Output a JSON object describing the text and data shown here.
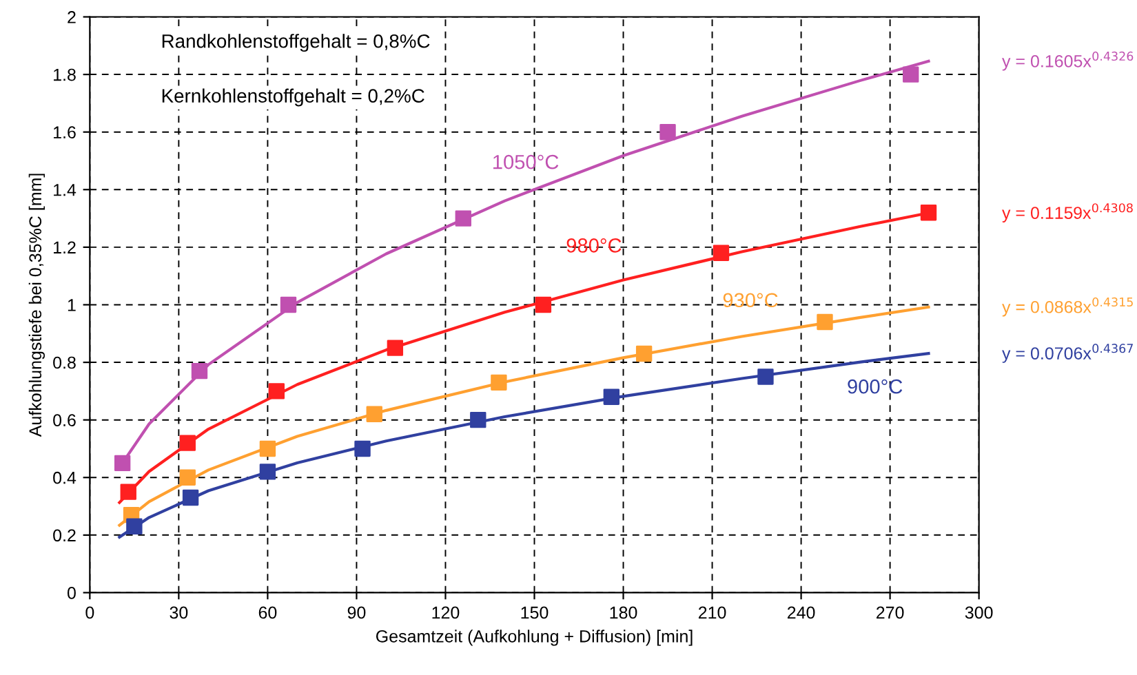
{
  "chart_data": {
    "type": "scatter",
    "xlabel": "Gesamtzeit (Aufkohlung + Diffusion) [min]",
    "ylabel": "Aufkohlungstiefe bei 0,35%C [mm]",
    "xlim": [
      0,
      300
    ],
    "ylim": [
      0,
      2
    ],
    "xticks": [
      0,
      30,
      60,
      90,
      120,
      150,
      180,
      210,
      240,
      270,
      300
    ],
    "yticks": [
      0,
      0.2,
      0.4,
      0.6,
      0.8,
      1,
      1.2,
      1.4,
      1.6,
      1.8,
      2
    ],
    "grid": true,
    "legend": false,
    "marker": "square",
    "series": [
      {
        "name": "1050°C",
        "color": "#c050b0",
        "x": [
          11,
          37,
          67,
          126,
          195,
          277
        ],
        "values": [
          0.45,
          0.77,
          1.0,
          1.3,
          1.6,
          1.8
        ]
      },
      {
        "name": "980°C",
        "color": "#ff2020",
        "x": [
          13,
          33,
          63,
          103,
          153,
          213,
          283
        ],
        "values": [
          0.35,
          0.52,
          0.7,
          0.85,
          1.0,
          1.18,
          1.32
        ]
      },
      {
        "name": "930°C",
        "color": "#ffa030",
        "x": [
          14,
          33,
          60,
          96,
          138,
          187,
          248
        ],
        "values": [
          0.27,
          0.4,
          0.5,
          0.62,
          0.73,
          0.83,
          0.94
        ]
      },
      {
        "name": "900°C",
        "color": "#3040a0",
        "x": [
          15,
          34,
          60,
          92,
          131,
          176,
          228
        ],
        "values": [
          0.23,
          0.33,
          0.42,
          0.5,
          0.6,
          0.68,
          0.75
        ]
      },
      {
        "type": "line",
        "marker": "none",
        "color": "#c050b0",
        "x": [
          10,
          20,
          40,
          70,
          100,
          140,
          180,
          220,
          260,
          283
        ],
        "values": [
          0.435,
          0.586,
          0.792,
          1.008,
          1.177,
          1.361,
          1.518,
          1.655,
          1.779,
          1.846
        ]
      },
      {
        "type": "line",
        "marker": "none",
        "color": "#ff2020",
        "x": [
          10,
          20,
          40,
          70,
          100,
          140,
          180,
          220,
          260,
          283
        ],
        "values": [
          0.313,
          0.421,
          0.568,
          0.723,
          0.843,
          0.974,
          1.086,
          1.184,
          1.272,
          1.319
        ]
      },
      {
        "type": "line",
        "marker": "none",
        "color": "#ffa030",
        "x": [
          10,
          20,
          40,
          70,
          100,
          140,
          180,
          220,
          260,
          283
        ],
        "values": [
          0.234,
          0.316,
          0.426,
          0.543,
          0.633,
          0.732,
          0.816,
          0.89,
          0.956,
          0.992
        ]
      },
      {
        "type": "line",
        "marker": "none",
        "color": "#3040a0",
        "x": [
          10,
          20,
          40,
          70,
          100,
          140,
          180,
          220,
          260,
          283
        ],
        "values": [
          0.193,
          0.261,
          0.354,
          0.451,
          0.527,
          0.611,
          0.682,
          0.744,
          0.801,
          0.831
        ]
      }
    ],
    "annotations": [
      "Randkohlenstoffgehalt = 0,8%C",
      "Kernkohlenstoffgehalt = 0,2%C",
      "y = 0.1605x$^{0.4326}$",
      "y = 0.1159x$^{0.4308}$",
      "y = 0.0868x$^{0.4315}$",
      "y = 0.0706x$^{0.4367}$"
    ]
  }
}
